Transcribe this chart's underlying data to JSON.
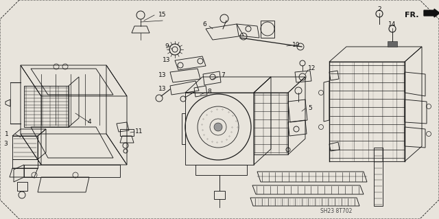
{
  "background_color": "#e8e4dc",
  "line_color": "#1a1a1a",
  "label_color": "#111111",
  "figure_width": 6.4,
  "figure_height": 3.19,
  "dpi": 100,
  "diagram_code": "SH23 8T702",
  "fr_label": "FR.",
  "label_fontsize": 6.5,
  "border_dash": [
    4,
    3
  ]
}
